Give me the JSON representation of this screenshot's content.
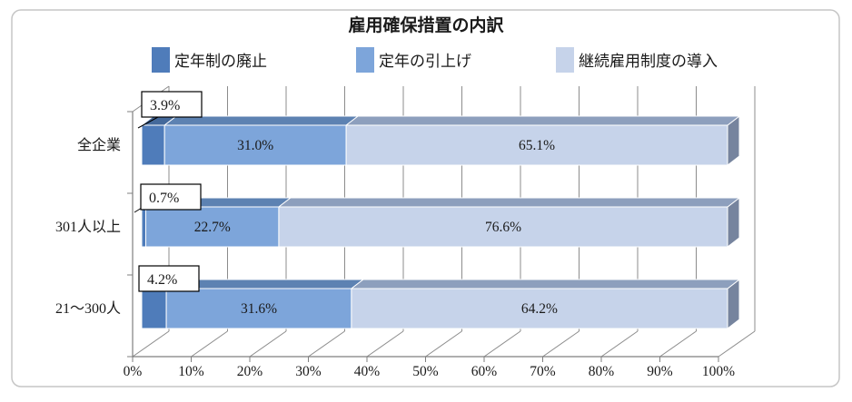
{
  "figure": {
    "background": "#ffffff",
    "border_color": "#c6c6c6"
  },
  "chart_data": {
    "type": "bar",
    "orientation": "horizontal",
    "stacked": true,
    "style": "3d",
    "title": "雇用確保措置の内訳",
    "categories": [
      "全企業",
      "301人以上",
      "21〜300人"
    ],
    "series": [
      {
        "name": "定年制の廃止",
        "values": [
          3.9,
          0.7,
          4.2
        ],
        "color": "#4F7CBA",
        "top_color": "#44699B"
      },
      {
        "name": "定年の引上げ",
        "values": [
          31.0,
          22.7,
          31.6
        ],
        "color": "#7DA5DA",
        "top_color": "#5D82B2"
      },
      {
        "name": "継続雇用制度の導入",
        "values": [
          65.1,
          76.6,
          64.2
        ],
        "color": "#C6D3EA",
        "top_color": "#8D9FBD",
        "side_color": "#76849E"
      }
    ],
    "value_labels": [
      [
        "3.9%",
        "31.0%",
        "65.1%"
      ],
      [
        "0.7%",
        "22.7%",
        "76.6%"
      ],
      [
        "4.2%",
        "31.6%",
        "64.2%"
      ]
    ],
    "first_series_label_style": "callout-box",
    "x_ticks": [
      "0%",
      "10%",
      "20%",
      "30%",
      "40%",
      "50%",
      "60%",
      "70%",
      "80%",
      "90%",
      "100%"
    ],
    "xlim": [
      0,
      100
    ],
    "xlabel": "",
    "ylabel": "",
    "grid": true,
    "grid_color": "#8c8c8c",
    "axis_line_color": "#7f7f7f",
    "legend_position": "top"
  }
}
